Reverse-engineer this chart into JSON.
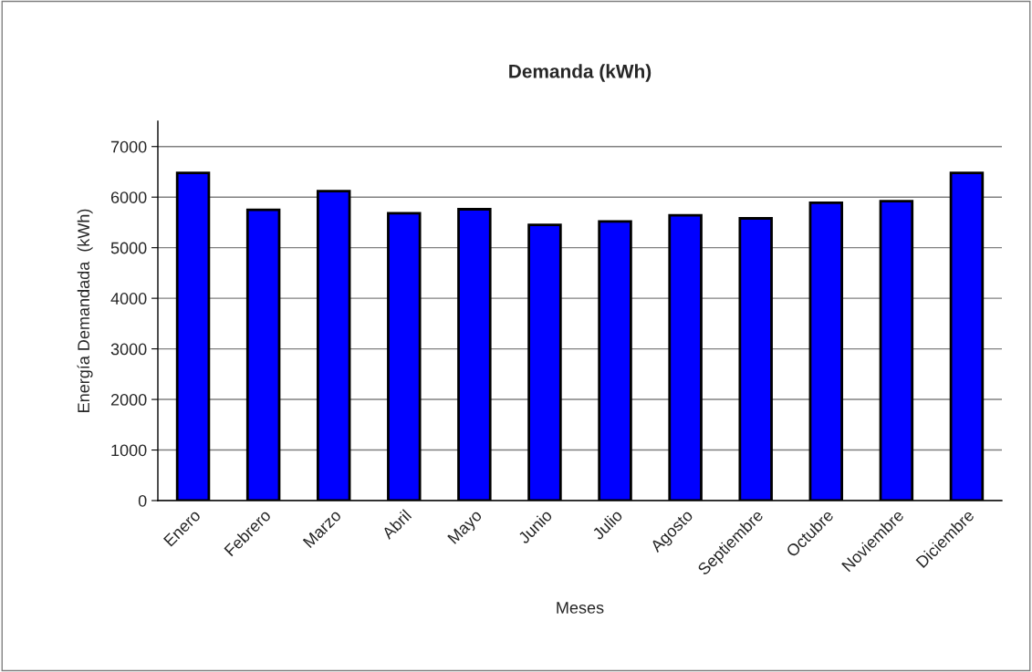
{
  "chart_data": {
    "type": "bar",
    "title": "Demanda (kWh)",
    "xlabel": "Meses",
    "ylabel": "Energía Demandada  (kWh)",
    "categories": [
      "Enero",
      "Febrero",
      "Marzo",
      "Abril",
      "Mayo",
      "Junio",
      "Julio",
      "Agosto",
      "Septiembre",
      "Octubre",
      "Noviembre",
      "Diciembre"
    ],
    "values": [
      6480,
      5750,
      6120,
      5680,
      5760,
      5450,
      5520,
      5640,
      5580,
      5890,
      5920,
      6480
    ],
    "color": "#0000ff",
    "ylim": [
      0,
      7500
    ],
    "yticks": [
      0,
      1000,
      2000,
      3000,
      4000,
      5000,
      6000,
      7000
    ],
    "grid": "y"
  }
}
